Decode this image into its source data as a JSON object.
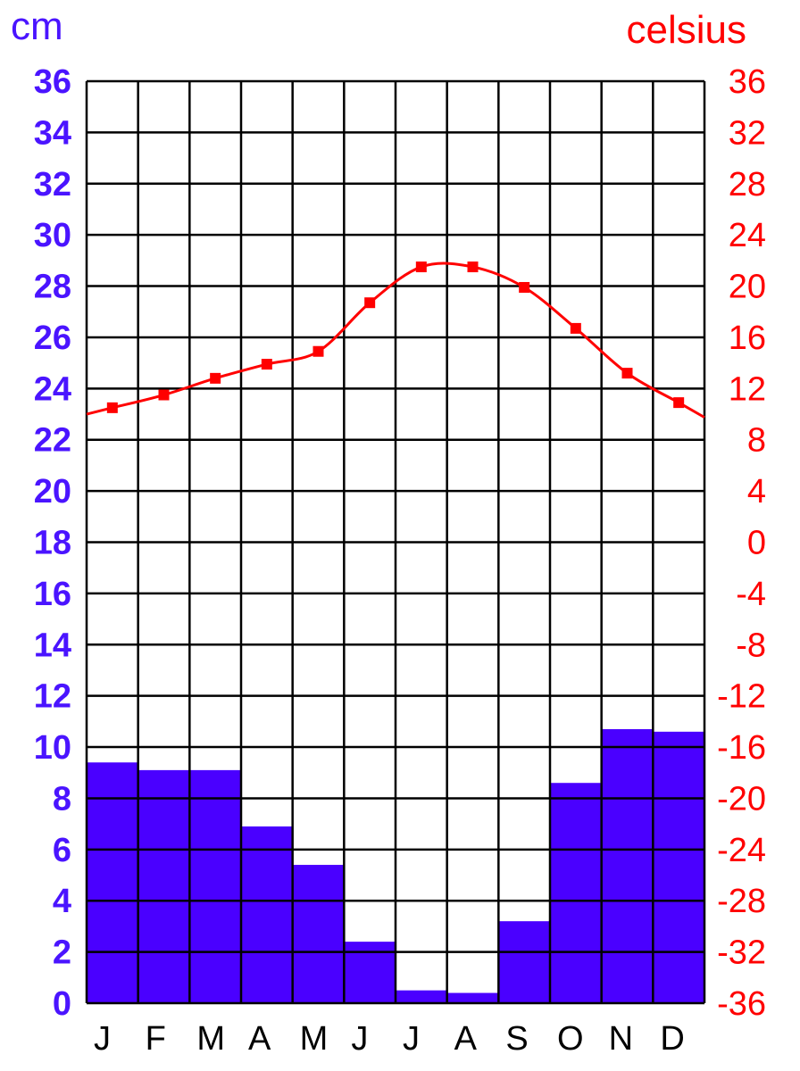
{
  "chart_data": {
    "type": "bar",
    "left_axis_unit": "cm",
    "right_axis_unit": "celsius",
    "categories": [
      "J",
      "F",
      "M",
      "A",
      "M",
      "J",
      "J",
      "A",
      "S",
      "O",
      "N",
      "D"
    ],
    "precip_ylim": [
      0,
      36
    ],
    "precip_ticks": [
      "0",
      "2",
      "4",
      "6",
      "8",
      "10",
      "12",
      "14",
      "16",
      "18",
      "20",
      "22",
      "24",
      "26",
      "28",
      "30",
      "32",
      "34",
      "36"
    ],
    "temp_ylim": [
      -36,
      36
    ],
    "temp_ticks": [
      "-36",
      "-32",
      "-28",
      "-24",
      "-20",
      "-16",
      "-12",
      "-8",
      "-4",
      "0",
      "4",
      "8",
      "12",
      "16",
      "20",
      "24",
      "28",
      "32",
      "36"
    ],
    "grid": true,
    "series": [
      {
        "type": "bar",
        "axis": "left",
        "color": "#4a00ff",
        "values": [
          9.4,
          9.1,
          9.1,
          6.9,
          5.4,
          2.4,
          0.5,
          0.4,
          3.2,
          8.6,
          10.7,
          10.6
        ]
      },
      {
        "type": "line",
        "axis": "right",
        "color": "#ff0000",
        "values": [
          10.5,
          11.5,
          12.8,
          13.9,
          14.9,
          18.7,
          21.5,
          21.5,
          19.9,
          16.7,
          13.2,
          10.9
        ]
      }
    ]
  }
}
